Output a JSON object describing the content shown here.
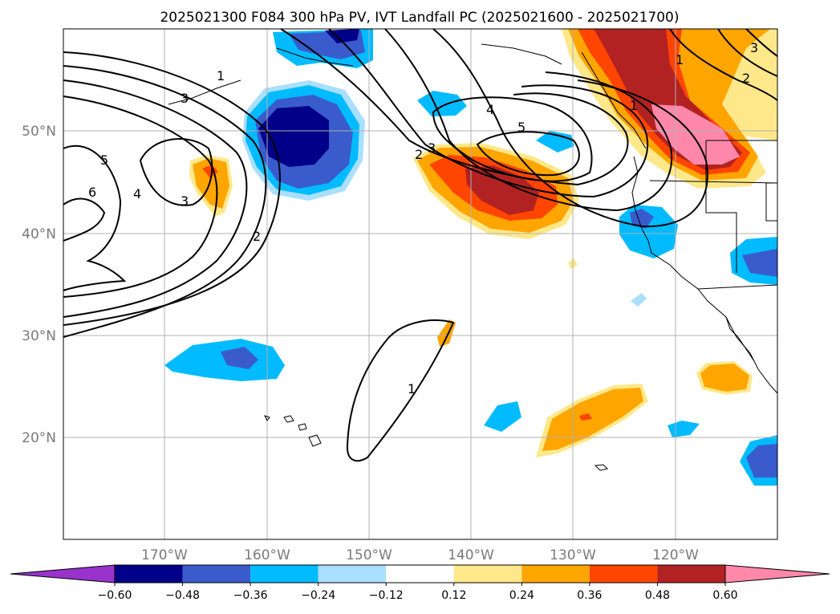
{
  "title": "2025021300 F084 300 hPa PV, IVT Landfall PC (2025021600 - 2025021700)",
  "lon_ticks": [
    "170°W",
    "160°W",
    "150°W",
    "140°W",
    "130°W",
    "120°W"
  ],
  "lat_ticks": [
    "50°N",
    "40°N",
    "30°N",
    "20°N"
  ],
  "contour_labels": [
    "1",
    "2",
    "3",
    "4",
    "5",
    "6",
    "1",
    "2",
    "3",
    "3",
    "4",
    "5",
    "1",
    "1",
    "2",
    "3"
  ],
  "colorbar": {
    "tick_labels": [
      "−0.60",
      "−0.48",
      "−0.36",
      "−0.24",
      "−0.12",
      "0.12",
      "0.24",
      "0.36",
      "0.48",
      "0.60"
    ],
    "colors": [
      "#9933cc",
      "#000088",
      "#3a5bcc",
      "#00bbff",
      "#aadfff",
      "#ffffff",
      "#ffe88a",
      "#ffa500",
      "#ff4500",
      "#b22222",
      "#ff88aa"
    ]
  }
}
